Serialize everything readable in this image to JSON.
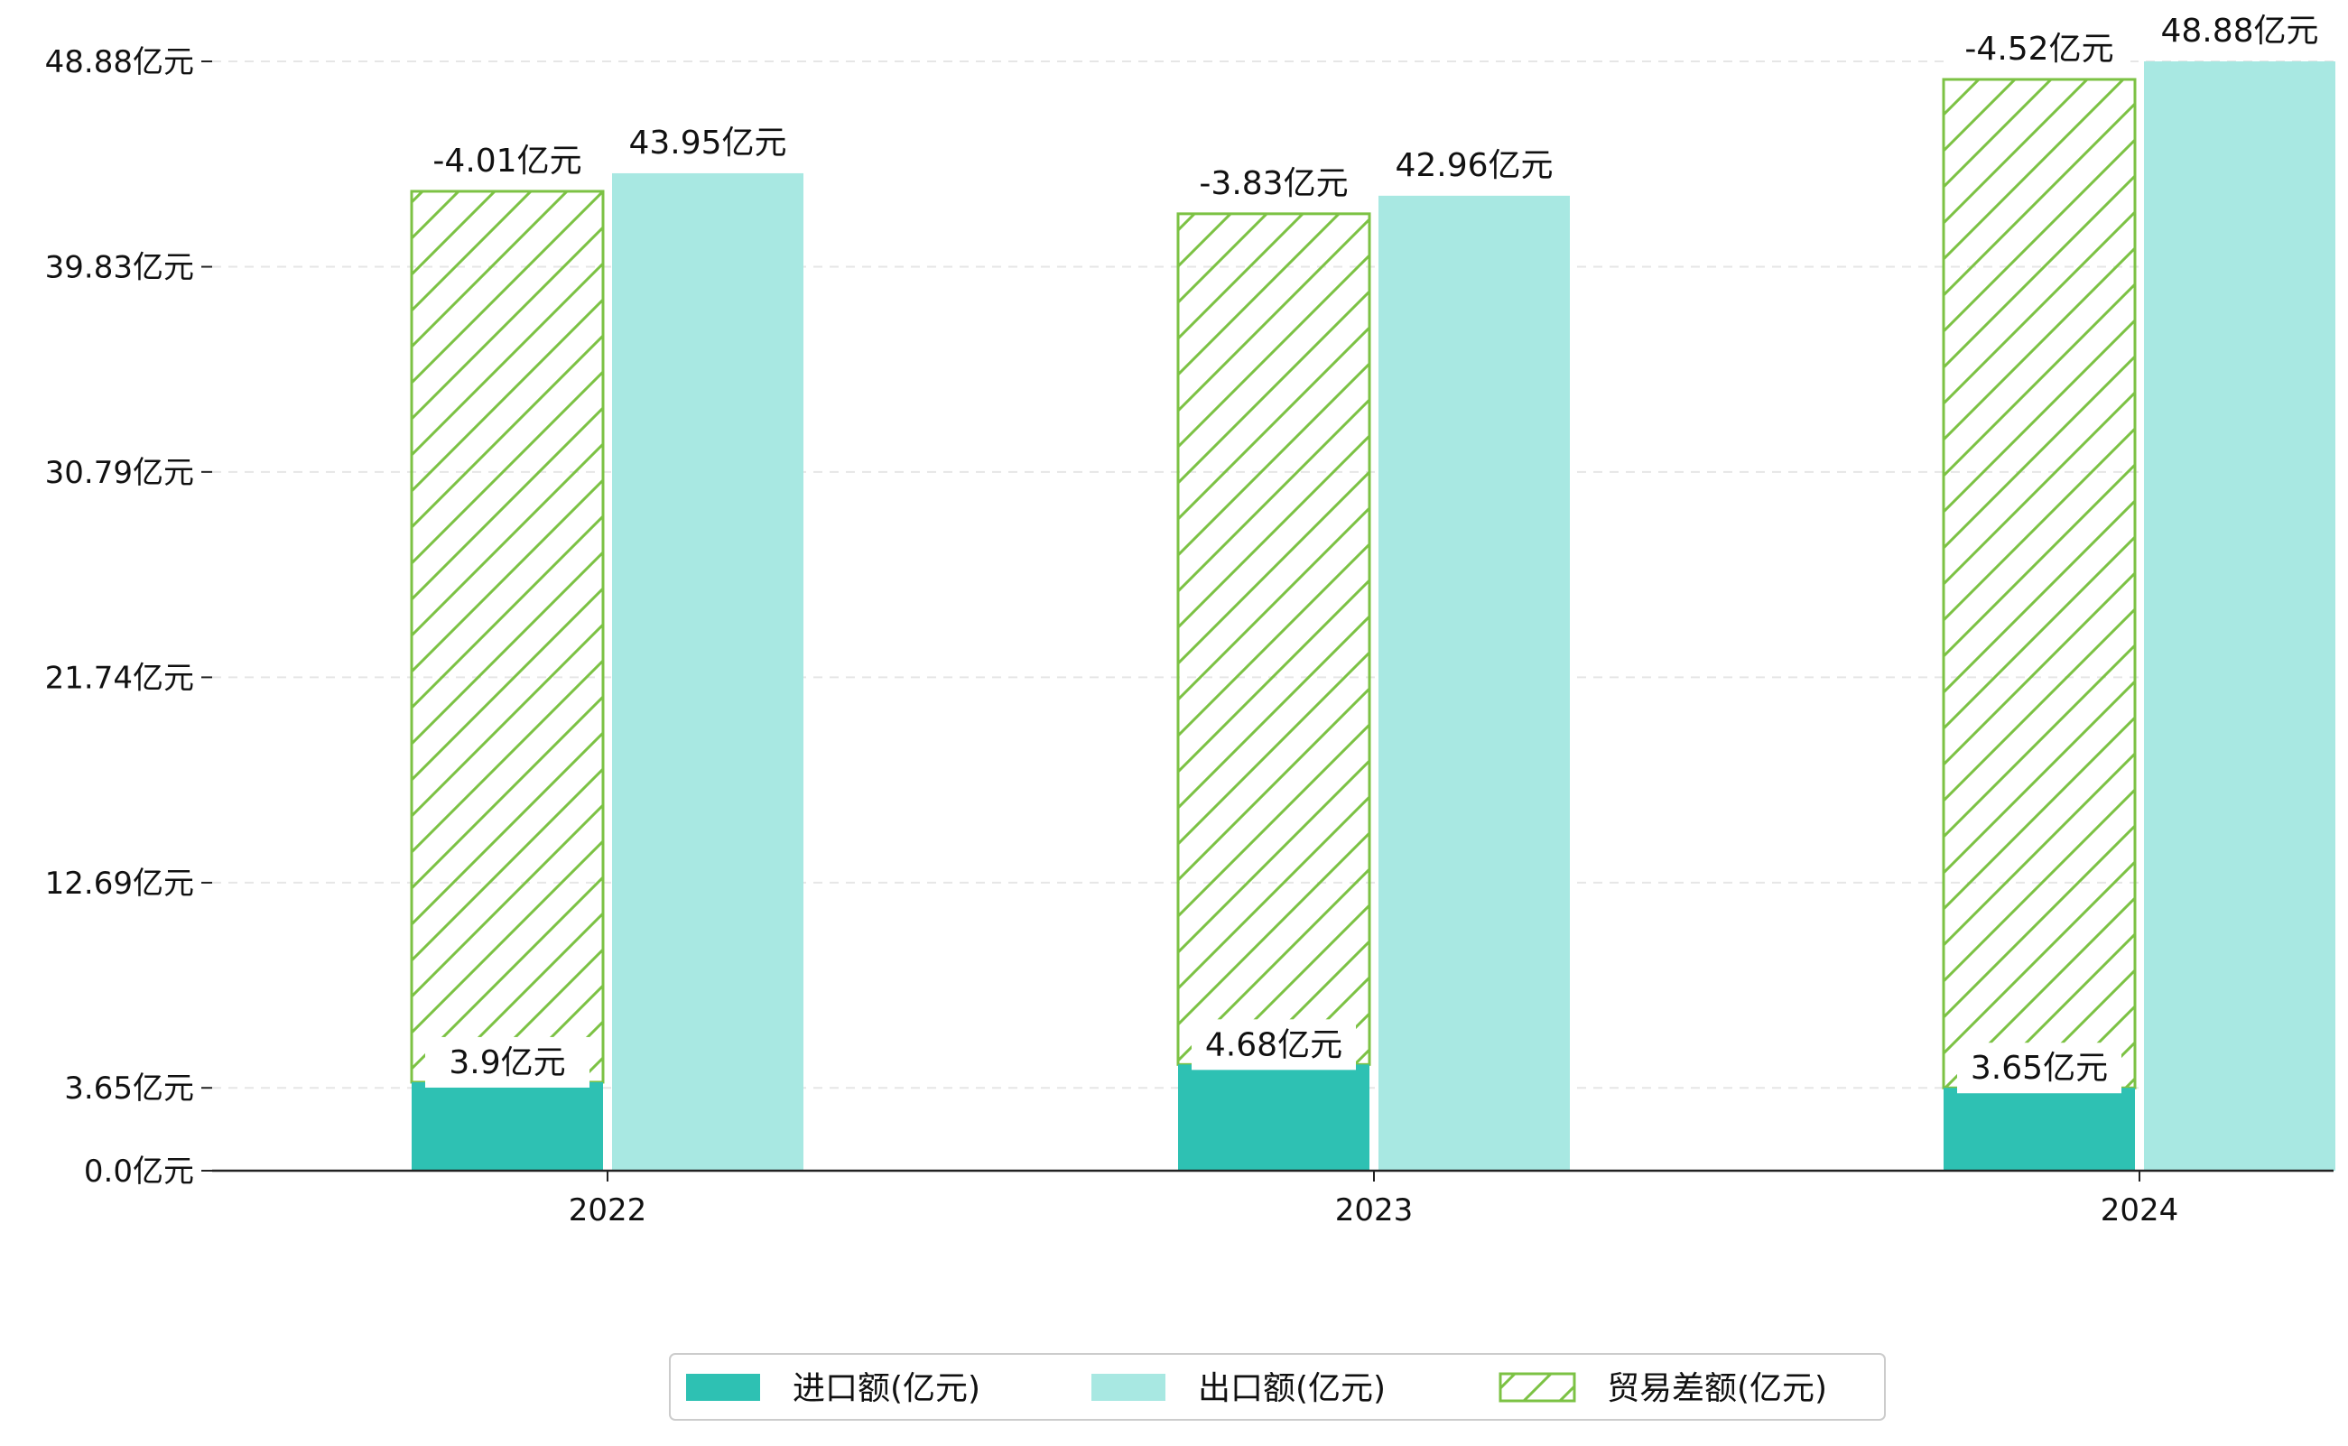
{
  "chart_data": {
    "type": "bar",
    "title": "",
    "xlabel": "",
    "ylabel": "",
    "categories": [
      "2022",
      "2023",
      "2024"
    ],
    "series": [
      {
        "name": "进口额(亿元)",
        "values": [
          3.9,
          4.68,
          3.65
        ],
        "labels": [
          "3.9亿元",
          "4.68亿元",
          "3.65亿元"
        ],
        "color": "#2ec1b3"
      },
      {
        "name": "出口额(亿元)",
        "values": [
          43.95,
          42.96,
          48.88
        ],
        "labels": [
          "43.95亿元",
          "42.96亿元",
          "48.88亿元"
        ],
        "color": "#a8e8e2"
      },
      {
        "name": "贸易差额(亿元)",
        "values": [
          -4.01,
          -3.83,
          -4.52
        ],
        "labels": [
          "-4.01亿元",
          "-3.83亿元",
          "-4.52亿元"
        ],
        "color": "#7cc244",
        "pattern": "diagonal-hatch"
      }
    ],
    "yticks": [
      0.0,
      3.65,
      12.69,
      21.74,
      30.79,
      39.83,
      48.88
    ],
    "ytick_labels": [
      "0.0亿元",
      "3.65亿元",
      "12.69亿元",
      "21.74亿元",
      "30.79亿元",
      "39.83亿元",
      "48.88亿元"
    ],
    "ylim": [
      0,
      48.88
    ],
    "grid": "horizontal dashed",
    "legend_position": "bottom-center"
  }
}
